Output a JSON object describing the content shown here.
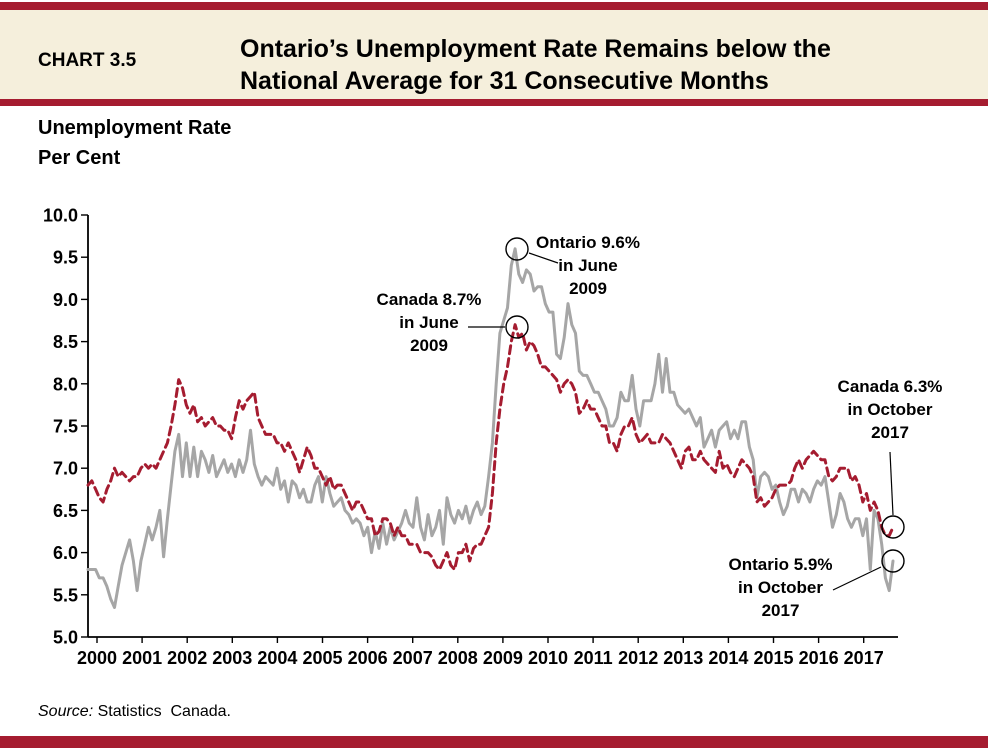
{
  "header": {
    "chart_number": "CHART 3.5",
    "title_line1": "Ontario’s Unemployment Rate Remains below the",
    "title_line2": "National Average for 31 Consecutive Months"
  },
  "axis_title": {
    "line1": "Unemployment Rate",
    "line2": "Per Cent"
  },
  "annotations": {
    "ontario_peak": {
      "line1": "Ontario 9.6%",
      "line2": "in June",
      "line3": "2009"
    },
    "canada_peak": {
      "line1": "Canada 8.7%",
      "line2": "in June",
      "line3": "2009"
    },
    "canada_end": {
      "line1": "Canada 6.3%",
      "line2": "in October",
      "line3": "2017"
    },
    "ontario_end": {
      "line1": "Ontario 5.9%",
      "line2": "in October",
      "line3": "2017"
    }
  },
  "source": {
    "label": "Source:",
    "text": " Statistics  Canada."
  },
  "colors": {
    "accent_red": "#A51C30",
    "ontario_gray": "#A6A6A6",
    "canada_red": "#A51C30",
    "header_beige": "#F5EFDC"
  },
  "chart_data": {
    "type": "line",
    "title": "Ontario’s Unemployment Rate Remains below the National Average for 31 Consecutive Months",
    "ylabel": "Unemployment Rate, Per Cent",
    "ylim": [
      5.0,
      10.0
    ],
    "grid": false,
    "legend_position": "none",
    "x_start": "2000-01",
    "x_end": "2017-10",
    "x_tick_labels": [
      "2000",
      "2001",
      "2002",
      "2003",
      "2004",
      "2005",
      "2006",
      "2007",
      "2008",
      "2009",
      "2010",
      "2011",
      "2012",
      "2013",
      "2014",
      "2015",
      "2016",
      "2017"
    ],
    "y_ticks": [
      "10.0",
      "9.5",
      "9.0",
      "8.5",
      "8.0",
      "7.5",
      "7.0",
      "6.5",
      "6.0",
      "5.5",
      "5.0"
    ],
    "series": [
      {
        "name": "Ontario",
        "color": "#A6A6A6",
        "style": "solid",
        "values": [
          5.8,
          5.8,
          5.8,
          5.7,
          5.7,
          5.6,
          5.45,
          5.35,
          5.6,
          5.85,
          6.0,
          6.15,
          5.9,
          5.55,
          5.9,
          6.1,
          6.3,
          6.15,
          6.3,
          6.5,
          5.95,
          6.4,
          6.8,
          7.2,
          7.4,
          6.9,
          7.3,
          6.9,
          7.25,
          6.9,
          7.2,
          7.1,
          6.95,
          7.15,
          6.9,
          7.0,
          7.1,
          6.95,
          7.05,
          6.9,
          7.1,
          6.95,
          7.1,
          7.45,
          7.05,
          6.9,
          6.8,
          6.9,
          6.85,
          6.8,
          7.0,
          6.75,
          6.85,
          6.6,
          6.85,
          6.8,
          6.65,
          6.75,
          6.6,
          6.6,
          6.8,
          6.9,
          6.6,
          6.9,
          6.7,
          6.55,
          6.6,
          6.65,
          6.5,
          6.45,
          6.35,
          6.4,
          6.35,
          6.2,
          6.3,
          6.0,
          6.25,
          6.05,
          6.35,
          6.1,
          6.3,
          6.15,
          6.25,
          6.35,
          6.5,
          6.35,
          6.3,
          6.65,
          6.3,
          6.15,
          6.45,
          6.2,
          6.3,
          6.5,
          6.1,
          6.65,
          6.45,
          6.35,
          6.5,
          6.4,
          6.55,
          6.35,
          6.5,
          6.6,
          6.45,
          6.55,
          6.9,
          7.3,
          8.0,
          8.6,
          8.75,
          8.9,
          9.4,
          9.6,
          9.3,
          9.2,
          9.35,
          9.3,
          9.1,
          9.15,
          9.15,
          8.95,
          8.85,
          8.85,
          8.35,
          8.3,
          8.55,
          8.95,
          8.7,
          8.6,
          8.15,
          8.1,
          8.1,
          8.0,
          7.9,
          7.9,
          7.8,
          7.7,
          7.5,
          7.5,
          7.6,
          7.9,
          7.8,
          7.8,
          8.1,
          7.7,
          7.5,
          7.8,
          7.8,
          7.8,
          8.0,
          8.35,
          7.9,
          8.3,
          7.9,
          7.9,
          7.75,
          7.7,
          7.65,
          7.7,
          7.6,
          7.5,
          7.6,
          7.25,
          7.35,
          7.45,
          7.25,
          7.45,
          7.5,
          7.55,
          7.35,
          7.45,
          7.35,
          7.55,
          7.55,
          7.25,
          7.1,
          6.65,
          6.9,
          6.95,
          6.9,
          6.75,
          6.8,
          6.6,
          6.45,
          6.55,
          6.75,
          6.75,
          6.6,
          6.75,
          6.7,
          6.6,
          6.75,
          6.85,
          6.8,
          6.9,
          6.6,
          6.3,
          6.45,
          6.7,
          6.6,
          6.4,
          6.3,
          6.4,
          6.4,
          6.2,
          6.4,
          5.8,
          6.5,
          6.4,
          6.1,
          5.7,
          5.55,
          5.9
        ]
      },
      {
        "name": "Canada",
        "color": "#A51C30",
        "style": "dashed",
        "values": [
          6.8,
          6.85,
          6.75,
          6.65,
          6.6,
          6.75,
          6.85,
          7.0,
          6.9,
          6.95,
          6.9,
          6.85,
          6.9,
          6.9,
          7.0,
          7.05,
          7.0,
          7.05,
          7.0,
          7.1,
          7.2,
          7.3,
          7.5,
          7.75,
          8.05,
          7.95,
          7.75,
          7.65,
          7.75,
          7.55,
          7.6,
          7.5,
          7.55,
          7.6,
          7.5,
          7.5,
          7.45,
          7.45,
          7.35,
          7.6,
          7.8,
          7.7,
          7.8,
          7.85,
          7.9,
          7.6,
          7.5,
          7.4,
          7.4,
          7.4,
          7.3,
          7.3,
          7.2,
          7.3,
          7.2,
          7.1,
          6.95,
          7.1,
          7.25,
          7.15,
          7.0,
          7.0,
          6.9,
          6.8,
          6.9,
          6.75,
          6.8,
          6.8,
          6.7,
          6.6,
          6.5,
          6.6,
          6.6,
          6.5,
          6.4,
          6.4,
          6.2,
          6.25,
          6.4,
          6.4,
          6.35,
          6.2,
          6.3,
          6.2,
          6.2,
          6.1,
          6.1,
          6.1,
          6.0,
          6.0,
          6.0,
          5.95,
          5.85,
          5.8,
          5.9,
          6.0,
          5.85,
          5.8,
          6.0,
          6.0,
          6.1,
          5.9,
          6.05,
          6.1,
          6.1,
          6.2,
          6.3,
          6.7,
          7.3,
          7.7,
          8.0,
          8.2,
          8.5,
          8.7,
          8.55,
          8.6,
          8.4,
          8.5,
          8.45,
          8.35,
          8.2,
          8.2,
          8.15,
          8.1,
          8.05,
          7.9,
          8.0,
          8.05,
          8.0,
          7.9,
          7.65,
          7.7,
          7.8,
          7.7,
          7.7,
          7.6,
          7.5,
          7.5,
          7.3,
          7.3,
          7.2,
          7.4,
          7.5,
          7.5,
          7.6,
          7.4,
          7.3,
          7.35,
          7.4,
          7.3,
          7.3,
          7.3,
          7.4,
          7.35,
          7.3,
          7.2,
          7.1,
          7.0,
          7.2,
          7.25,
          7.1,
          7.1,
          7.2,
          7.1,
          7.05,
          7.0,
          6.95,
          7.2,
          7.0,
          7.05,
          6.95,
          6.9,
          7.0,
          7.1,
          7.05,
          7.0,
          6.9,
          6.6,
          6.65,
          6.55,
          6.6,
          6.65,
          6.75,
          6.8,
          6.8,
          6.8,
          6.85,
          7.0,
          7.1,
          7.0,
          7.1,
          7.15,
          7.2,
          7.15,
          7.1,
          7.1,
          6.9,
          6.85,
          6.9,
          7.0,
          7.0,
          7.0,
          6.85,
          6.9,
          6.8,
          6.6,
          6.7,
          6.5,
          6.6,
          6.5,
          6.3,
          6.2,
          6.2,
          6.3
        ]
      }
    ],
    "annotated_points": [
      {
        "series": "Ontario",
        "label": "Ontario 9.6% in June 2009",
        "x": "2009-06",
        "value": 9.6
      },
      {
        "series": "Canada",
        "label": "Canada 8.7% in June 2009",
        "x": "2009-06",
        "value": 8.7
      },
      {
        "series": "Canada",
        "label": "Canada 6.3% in October 2017",
        "x": "2017-10",
        "value": 6.3
      },
      {
        "series": "Ontario",
        "label": "Ontario 5.9% in October 2017",
        "x": "2017-10",
        "value": 5.9
      }
    ]
  }
}
